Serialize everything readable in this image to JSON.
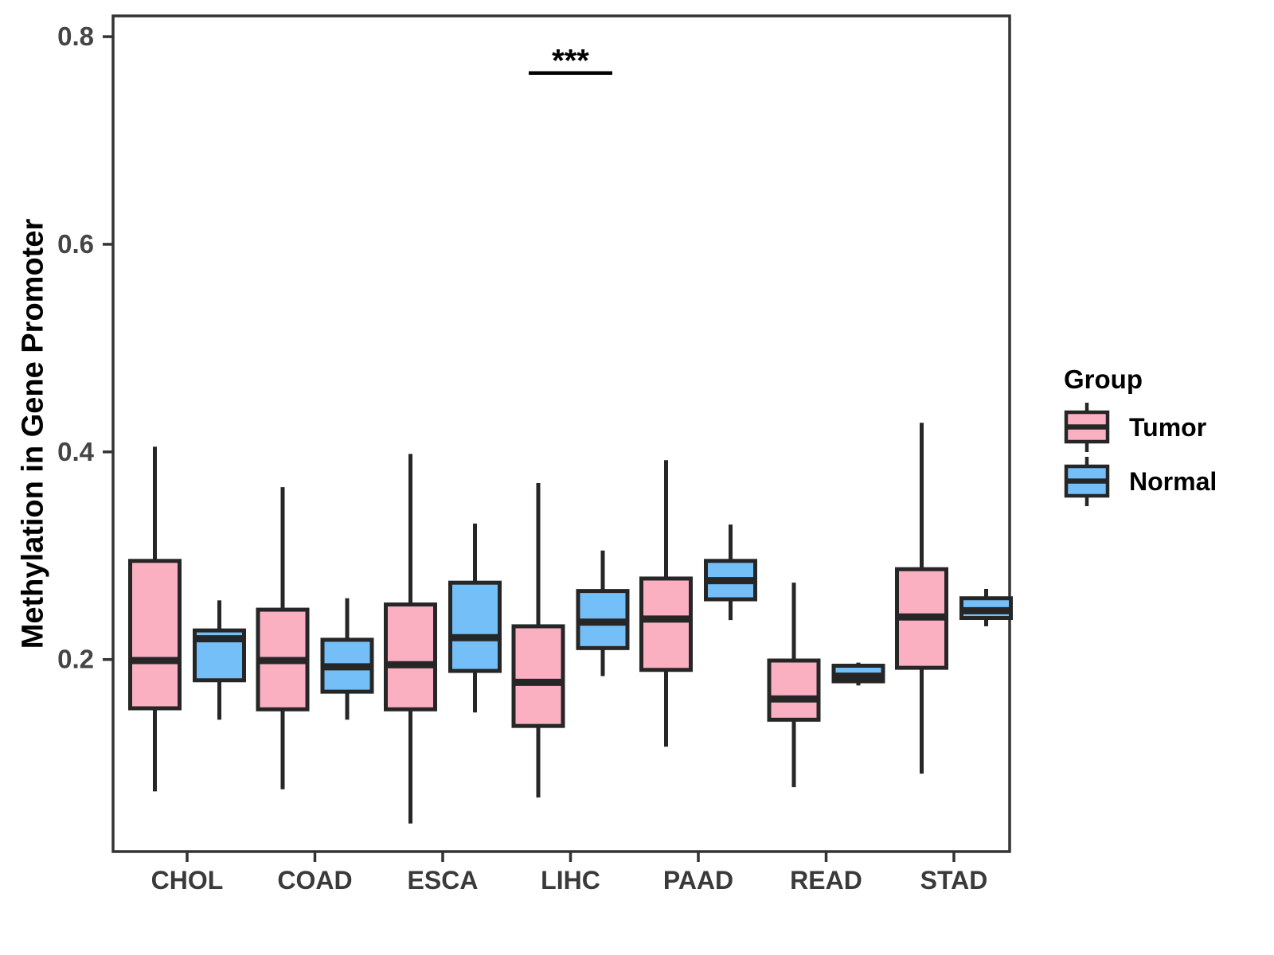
{
  "chart_data": {
    "type": "boxplot",
    "title": "",
    "xlabel": "",
    "ylabel": "Methylation in Gene Promoter",
    "categories": [
      "CHOL",
      "COAD",
      "ESCA",
      "LIHC",
      "PAAD",
      "READ",
      "STAD"
    ],
    "ylim": [
      0.015,
      0.82
    ],
    "yticks": [
      0.2,
      0.4,
      0.6,
      0.8
    ],
    "ytick_labels": [
      "0.2",
      "0.4",
      "0.6",
      "0.8"
    ],
    "grid": false,
    "legend": {
      "title": "Group",
      "position": "right"
    },
    "colors": {
      "tumor_fill": "#FBB0C2",
      "normal_fill": "#74BFF8",
      "box_stroke": "#262626",
      "panel_border": "#333333",
      "ytick_text": "#454545",
      "xtick_text": "#3a3a3a",
      "annotation": "#000000"
    },
    "series": [
      {
        "name": "Tumor",
        "fill": "#FBB0C2",
        "stats": [
          {
            "category": "CHOL",
            "min": 0.073,
            "q1": 0.153,
            "median": 0.199,
            "q3": 0.295,
            "max": 0.405
          },
          {
            "category": "COAD",
            "min": 0.075,
            "q1": 0.152,
            "median": 0.199,
            "q3": 0.248,
            "max": 0.366
          },
          {
            "category": "ESCA",
            "min": 0.042,
            "q1": 0.152,
            "median": 0.195,
            "q3": 0.253,
            "max": 0.398
          },
          {
            "category": "LIHC",
            "min": 0.067,
            "q1": 0.136,
            "median": 0.178,
            "q3": 0.232,
            "max": 0.37
          },
          {
            "category": "PAAD",
            "min": 0.116,
            "q1": 0.19,
            "median": 0.239,
            "q3": 0.278,
            "max": 0.392
          },
          {
            "category": "READ",
            "min": 0.077,
            "q1": 0.142,
            "median": 0.162,
            "q3": 0.199,
            "max": 0.274
          },
          {
            "category": "STAD",
            "min": 0.09,
            "q1": 0.192,
            "median": 0.241,
            "q3": 0.287,
            "max": 0.428
          }
        ]
      },
      {
        "name": "Normal",
        "fill": "#74BFF8",
        "stats": [
          {
            "category": "CHOL",
            "min": 0.142,
            "q1": 0.18,
            "median": 0.22,
            "q3": 0.228,
            "max": 0.257
          },
          {
            "category": "COAD",
            "min": 0.142,
            "q1": 0.169,
            "median": 0.193,
            "q3": 0.219,
            "max": 0.259
          },
          {
            "category": "ESCA",
            "min": 0.149,
            "q1": 0.189,
            "median": 0.221,
            "q3": 0.274,
            "max": 0.331
          },
          {
            "category": "LIHC",
            "min": 0.184,
            "q1": 0.211,
            "median": 0.236,
            "q3": 0.266,
            "max": 0.305
          },
          {
            "category": "PAAD",
            "min": 0.238,
            "q1": 0.258,
            "median": 0.276,
            "q3": 0.295,
            "max": 0.33
          },
          {
            "category": "READ",
            "min": 0.175,
            "q1": 0.179,
            "median": 0.184,
            "q3": 0.194,
            "max": 0.197
          },
          {
            "category": "STAD",
            "min": 0.232,
            "q1": 0.24,
            "median": 0.247,
            "q3": 0.259,
            "max": 0.268
          }
        ]
      }
    ],
    "annotation": {
      "text": "***",
      "category": "LIHC",
      "bar_y": 0.765,
      "text_y": 0.782
    }
  }
}
